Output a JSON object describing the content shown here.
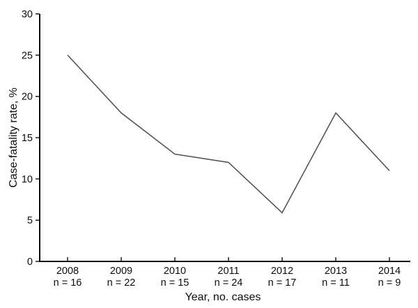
{
  "chart_data": {
    "type": "line",
    "title": "",
    "xlabel": "Year, no. cases",
    "ylabel": "Case-fatality rate, %",
    "categories": [
      "2008",
      "2009",
      "2010",
      "2011",
      "2012",
      "2013",
      "2014"
    ],
    "case_count_labels": [
      "n = 16",
      "n = 22",
      "n = 15",
      "n = 24",
      "n = 17",
      "n = 11",
      "n = 9"
    ],
    "series": [
      {
        "name": "Case-fatality rate",
        "values": [
          25,
          18,
          13,
          12,
          5.9,
          18,
          11
        ]
      }
    ],
    "ylim": [
      0,
      30
    ],
    "yticks": [
      0,
      5,
      10,
      15,
      20,
      25,
      30
    ],
    "grid": false,
    "legend_position": "none",
    "colors": {
      "line": "#4d4d4d",
      "axis": "#0d0d0d",
      "text": "#0d0d0d",
      "background": "#ffffff"
    }
  }
}
